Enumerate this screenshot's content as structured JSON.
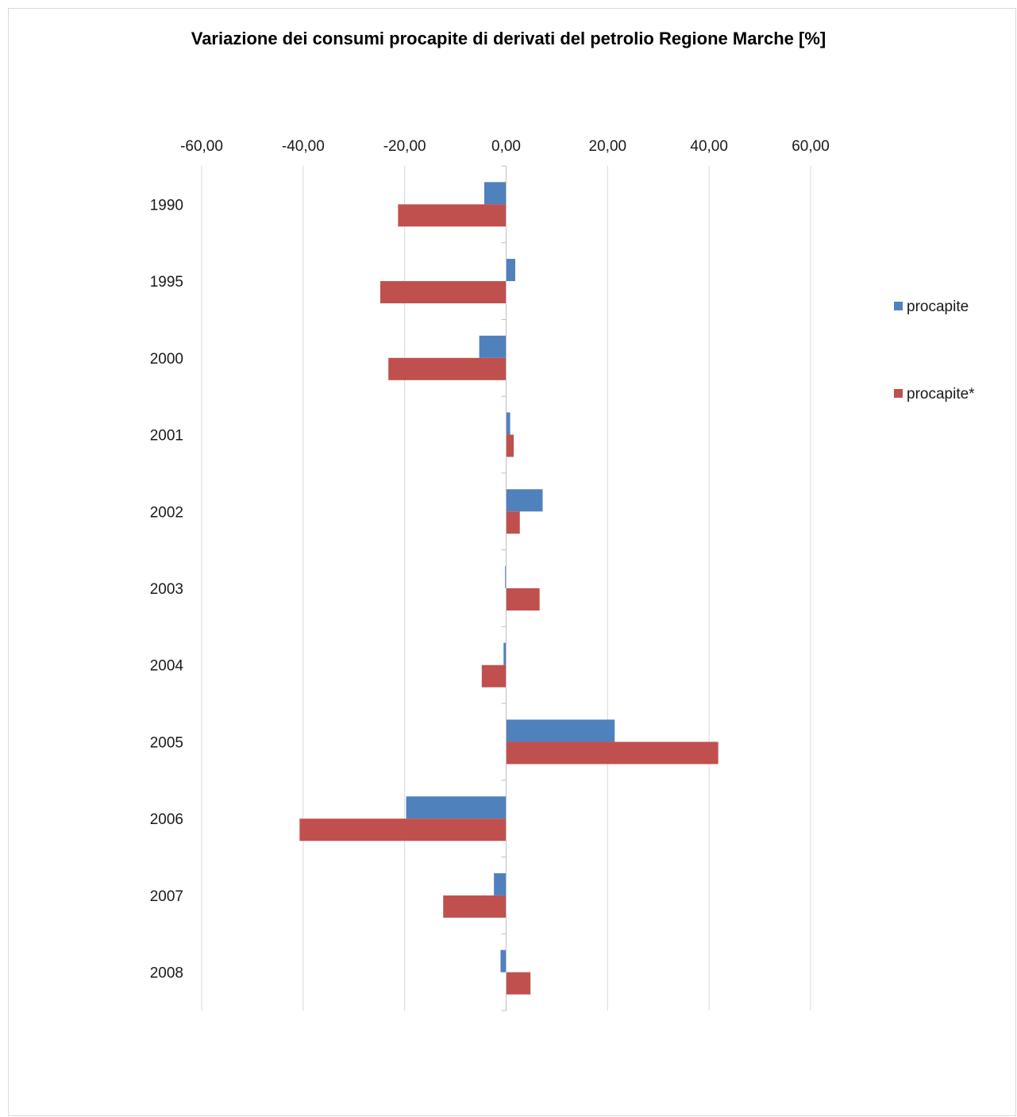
{
  "chart_data": {
    "type": "bar",
    "orientation": "horizontal",
    "title": "Variazione dei consumi procapite di derivati del petrolio Regione Marche [%]",
    "xlim": [
      -60,
      60
    ],
    "x_ticks": [
      "-60,00",
      "-40,00",
      "-20,00",
      "0,00",
      "20,00",
      "40,00",
      "60,00"
    ],
    "x_tick_values": [
      -60,
      -40,
      -20,
      0,
      20,
      40,
      60
    ],
    "categories": [
      "1990",
      "1995",
      "2000",
      "2001",
      "2002",
      "2003",
      "2004",
      "2005",
      "2006",
      "2007",
      "2008"
    ],
    "series": [
      {
        "name": "procapite",
        "color": "#4f81bd",
        "values": [
          -4.3,
          1.8,
          -5.3,
          0.8,
          7.2,
          -0.2,
          -0.5,
          21.4,
          -19.7,
          -2.4,
          -1.1
        ]
      },
      {
        "name": "procapite*",
        "color": "#c0504d",
        "values": [
          -21.3,
          -24.8,
          -23.2,
          1.5,
          2.7,
          6.6,
          -4.8,
          41.8,
          -40.7,
          -12.4,
          4.8
        ]
      }
    ],
    "grid": "vertical",
    "legend_position": "right"
  }
}
